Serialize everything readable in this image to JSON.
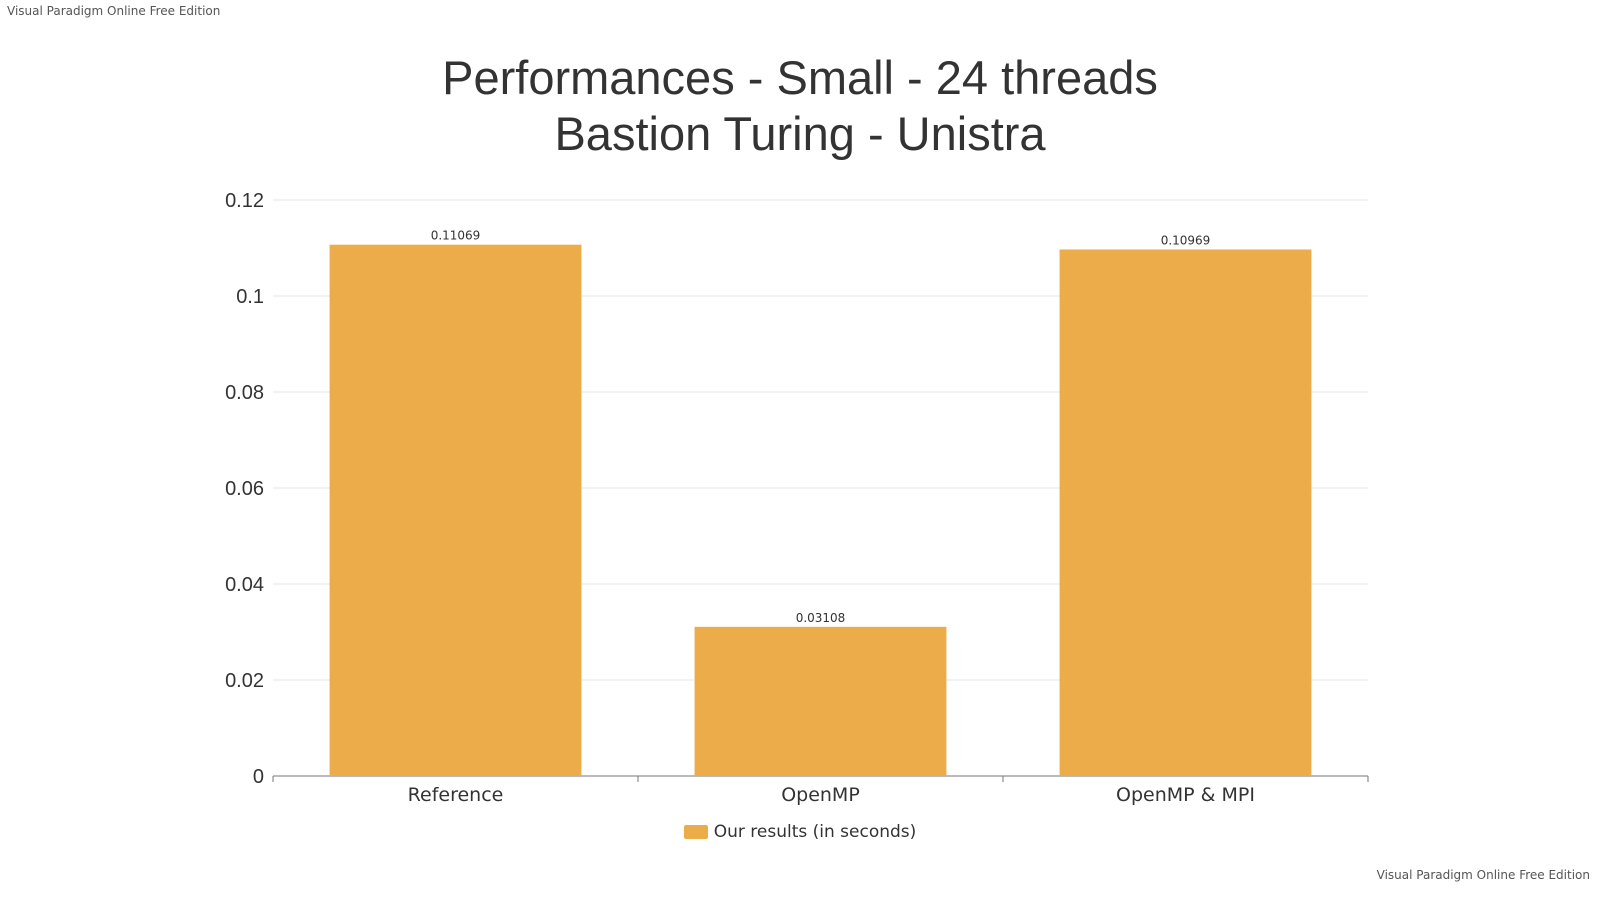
{
  "watermark": {
    "top": "Visual Paradigm Online Free Edition",
    "bottom": "Visual Paradigm Online Free Edition"
  },
  "colors": {
    "bar": "#EDAC4A",
    "grid": "#E6E6E6",
    "axis": "#777777",
    "text": "#333333"
  },
  "chart_data": {
    "type": "bar",
    "title": [
      "Performances - Small - 24 threads",
      "Bastion Turing - Unistra"
    ],
    "categories": [
      "Reference",
      "OpenMP",
      "OpenMP & MPI"
    ],
    "series": [
      {
        "name": "Our results (in seconds)",
        "values": [
          0.11069,
          0.03108,
          0.10969
        ]
      }
    ],
    "data_labels": [
      "0.11069",
      "0.03108",
      "0.10969"
    ],
    "ylim": [
      0,
      0.12
    ],
    "yticks": [
      "0",
      "0.02",
      "0.04",
      "0.06",
      "0.08",
      "0.1",
      "0.12"
    ],
    "grid": true,
    "legend_position": "bottom-center"
  }
}
